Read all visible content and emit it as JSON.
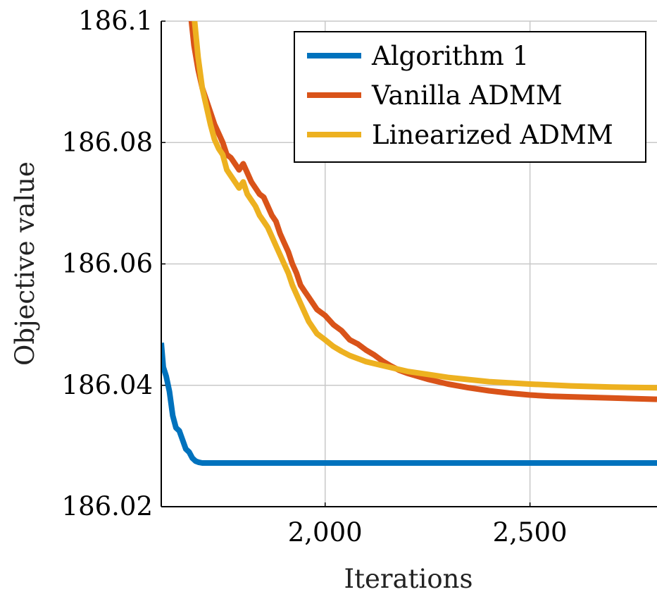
{
  "chart_data": {
    "type": "line",
    "title": "",
    "xlabel": "Iterations",
    "ylabel": "Objective value",
    "xlim": [
      1600,
      2810
    ],
    "ylim": [
      186.02,
      186.1
    ],
    "xticks": [
      2000,
      2500
    ],
    "xtick_labels": [
      "2,000",
      "2,500"
    ],
    "yticks": [
      186.02,
      186.04,
      186.06,
      186.08,
      186.1
    ],
    "ytick_labels": [
      "186.02",
      "186.04",
      "186.06",
      "186.08",
      "186.1"
    ],
    "grid": true,
    "legend_position": "top-right",
    "series": [
      {
        "name": "Algorithm 1",
        "color": "#0072BD",
        "x": [
          1600,
          1605,
          1612,
          1620,
          1628,
          1636,
          1644,
          1652,
          1660,
          1668,
          1676,
          1684,
          1692,
          1700,
          1720,
          1750,
          1800,
          1900,
          2200,
          2500,
          2810
        ],
        "y": [
          186.047,
          186.043,
          186.0415,
          186.039,
          186.035,
          186.033,
          186.0325,
          186.031,
          186.0295,
          186.029,
          186.028,
          186.0275,
          186.0273,
          186.0272,
          186.0272,
          186.0272,
          186.0272,
          186.0272,
          186.0272,
          186.0272,
          186.0272
        ]
      },
      {
        "name": "Vanilla ADMM",
        "color": "#D95319",
        "x": [
          1672,
          1680,
          1690,
          1700,
          1710,
          1720,
          1730,
          1740,
          1750,
          1760,
          1770,
          1780,
          1790,
          1800,
          1810,
          1820,
          1830,
          1840,
          1850,
          1860,
          1870,
          1880,
          1890,
          1900,
          1910,
          1920,
          1930,
          1940,
          1950,
          1960,
          1980,
          2000,
          2020,
          2040,
          2060,
          2080,
          2100,
          2120,
          2140,
          2160,
          2180,
          2200,
          2250,
          2300,
          2350,
          2400,
          2450,
          2500,
          2550,
          2600,
          2700,
          2810
        ],
        "y": [
          186.101,
          186.096,
          186.092,
          186.089,
          186.087,
          186.085,
          186.083,
          186.0815,
          186.08,
          186.078,
          186.0775,
          186.0765,
          186.0755,
          186.0765,
          186.075,
          186.0735,
          186.0725,
          186.0715,
          186.071,
          186.0695,
          186.068,
          186.067,
          186.065,
          186.0635,
          186.062,
          186.06,
          186.0585,
          186.0565,
          186.0555,
          186.0545,
          186.0525,
          186.0515,
          186.05,
          186.049,
          186.0475,
          186.0468,
          186.0458,
          186.045,
          186.044,
          186.0432,
          186.0425,
          186.042,
          186.041,
          186.0402,
          186.0396,
          186.0391,
          186.0387,
          186.0384,
          186.0382,
          186.0381,
          186.0379,
          186.0377
        ]
      },
      {
        "name": "Linearized ADMM",
        "color": "#EDB120",
        "x": [
          1680,
          1690,
          1700,
          1710,
          1720,
          1730,
          1740,
          1750,
          1760,
          1770,
          1780,
          1790,
          1800,
          1810,
          1820,
          1830,
          1840,
          1850,
          1860,
          1870,
          1880,
          1890,
          1900,
          1910,
          1920,
          1930,
          1940,
          1950,
          1960,
          1980,
          2000,
          2020,
          2040,
          2060,
          2080,
          2100,
          2150,
          2200,
          2250,
          2300,
          2400,
          2500,
          2600,
          2700,
          2810
        ],
        "y": [
          186.101,
          186.094,
          186.089,
          186.086,
          186.083,
          186.0805,
          186.079,
          186.078,
          186.0755,
          186.0745,
          186.0735,
          186.0725,
          186.0735,
          186.0715,
          186.0705,
          186.0695,
          186.068,
          186.067,
          186.066,
          186.0645,
          186.063,
          186.0615,
          186.06,
          186.0585,
          186.0565,
          186.055,
          186.0535,
          186.052,
          186.0505,
          186.0485,
          186.0475,
          186.0464,
          186.0456,
          186.0449,
          186.0444,
          186.0439,
          186.0431,
          186.0423,
          186.0418,
          186.0413,
          186.0406,
          186.0402,
          186.0399,
          186.0397,
          186.0396
        ]
      }
    ]
  }
}
